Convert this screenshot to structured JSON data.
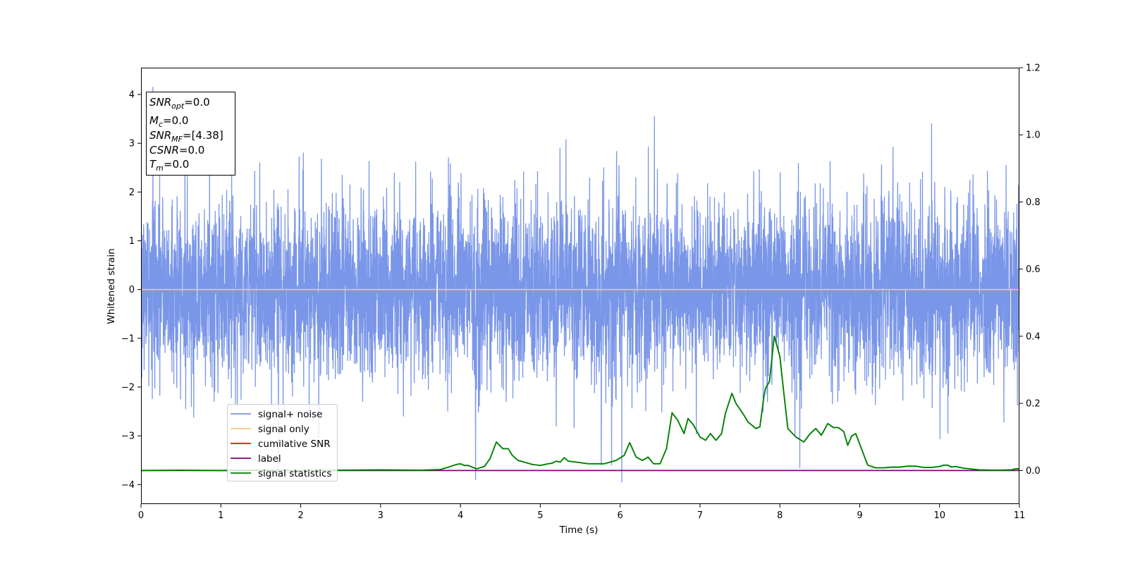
{
  "chart_data": {
    "type": "line",
    "title": "",
    "xlabel": "Time (s)",
    "ylabel": "Whitened strain",
    "xlim": [
      0,
      11
    ],
    "ylim": [
      -4.4,
      4.55
    ],
    "y2lim": [
      -0.1,
      1.2
    ],
    "grid": false,
    "legend_position": "lower-left",
    "x_ticks": [
      0,
      1,
      2,
      3,
      4,
      5,
      6,
      7,
      8,
      9,
      10,
      11
    ],
    "x_tick_labels": [
      "0",
      "1",
      "2",
      "3",
      "4",
      "5",
      "6",
      "7",
      "8",
      "9",
      "10",
      "11"
    ],
    "y_ticks": [
      -4,
      -3,
      -2,
      -1,
      0,
      1,
      2,
      3,
      4
    ],
    "y_tick_labels": [
      "−4",
      "−3",
      "−2",
      "−1",
      "0",
      "1",
      "2",
      "3",
      "4"
    ],
    "y2_ticks": [
      0.0,
      0.2,
      0.4,
      0.6,
      0.8,
      1.0,
      1.2
    ],
    "y2_tick_labels": [
      "0.0",
      "0.2",
      "0.4",
      "0.6",
      "0.8",
      "1.0",
      "1.2"
    ],
    "info_box": {
      "lines": [
        {
          "base": "SNR",
          "sub": "opt",
          "value": "=0.0"
        },
        {
          "base": "M",
          "sub": "c",
          "value": "=0.0"
        },
        {
          "base": "SNR",
          "sub": "MF",
          "value": "=[4.38]"
        },
        {
          "base": "CSNR",
          "sub": "",
          "value": "=0.0"
        },
        {
          "base": "T",
          "sub": "m",
          "value": "=0.0"
        }
      ]
    },
    "series": [
      {
        "name": "signal+ noise",
        "color": "#7a96e8",
        "axis": "left",
        "style": "noise",
        "amplitude_envelope": {
          "typical_high": 2.5,
          "typical_low": -2.5,
          "max": 4.15,
          "min": -3.95
        },
        "notable_spikes": [
          {
            "x": 0.15,
            "y": 4.15
          },
          {
            "x": 6.43,
            "y": 3.55
          },
          {
            "x": 6.02,
            "y": -3.95
          },
          {
            "x": 4.19,
            "y": -3.9
          },
          {
            "x": 1.72,
            "y": -3.85
          },
          {
            "x": 8.25,
            "y": -3.65
          },
          {
            "x": 9.9,
            "y": 3.4
          }
        ]
      },
      {
        "name": "signal only",
        "color": "#f5c77e",
        "axis": "left",
        "x": [
          0,
          11
        ],
        "y": [
          0,
          0
        ]
      },
      {
        "name": "cumilative SNR",
        "color": "#ff0000",
        "axis": "left",
        "x": [],
        "y": []
      },
      {
        "name": "label",
        "color": "#800080",
        "axis": "right",
        "x": [
          0,
          11
        ],
        "y": [
          0,
          0
        ]
      },
      {
        "name": "signal statistics",
        "color": "#008000",
        "axis": "right",
        "x": [
          0,
          0.5,
          1.0,
          1.5,
          2.0,
          2.5,
          3.0,
          3.5,
          3.75,
          3.85,
          3.95,
          4.0,
          4.05,
          4.1,
          4.2,
          4.3,
          4.37,
          4.45,
          4.53,
          4.6,
          4.65,
          4.72,
          4.8,
          4.9,
          5.0,
          5.1,
          5.15,
          5.2,
          5.25,
          5.3,
          5.35,
          5.45,
          5.6,
          5.8,
          5.95,
          6.05,
          6.12,
          6.2,
          6.28,
          6.35,
          6.42,
          6.5,
          6.58,
          6.65,
          6.72,
          6.8,
          6.85,
          6.92,
          7.0,
          7.07,
          7.13,
          7.2,
          7.27,
          7.32,
          7.4,
          7.45,
          7.55,
          7.6,
          7.65,
          7.7,
          7.75,
          7.8,
          7.82,
          7.87,
          7.93,
          8.0,
          8.05,
          8.1,
          8.2,
          8.3,
          8.38,
          8.45,
          8.52,
          8.6,
          8.67,
          8.73,
          8.8,
          8.85,
          8.9,
          8.95,
          9.1,
          9.2,
          9.3,
          9.4,
          9.5,
          9.6,
          9.7,
          9.8,
          9.9,
          10.0,
          10.05,
          10.1,
          10.15,
          10.2,
          10.3,
          10.5,
          10.7,
          10.9,
          10.95,
          11.0
        ],
        "y": [
          0.0,
          0.001,
          0.0,
          0.001,
          0.0,
          0.001,
          0.002,
          0.001,
          0.003,
          0.01,
          0.018,
          0.02,
          0.015,
          0.015,
          0.005,
          0.012,
          0.035,
          0.085,
          0.065,
          0.065,
          0.045,
          0.03,
          0.025,
          0.018,
          0.015,
          0.02,
          0.022,
          0.028,
          0.025,
          0.038,
          0.028,
          0.025,
          0.02,
          0.02,
          0.03,
          0.045,
          0.083,
          0.04,
          0.03,
          0.04,
          0.02,
          0.02,
          0.065,
          0.172,
          0.15,
          0.11,
          0.155,
          0.135,
          0.1,
          0.09,
          0.11,
          0.09,
          0.11,
          0.172,
          0.23,
          0.2,
          0.165,
          0.145,
          0.135,
          0.125,
          0.13,
          0.22,
          0.245,
          0.265,
          0.4,
          0.34,
          0.23,
          0.125,
          0.1,
          0.085,
          0.11,
          0.125,
          0.105,
          0.14,
          0.128,
          0.128,
          0.116,
          0.075,
          0.103,
          0.11,
          0.016,
          0.008,
          0.008,
          0.01,
          0.01,
          0.013,
          0.013,
          0.009,
          0.009,
          0.012,
          0.016,
          0.016,
          0.01,
          0.012,
          0.007,
          0.002,
          0.001,
          0.002,
          0.005,
          0.005
        ]
      }
    ]
  }
}
